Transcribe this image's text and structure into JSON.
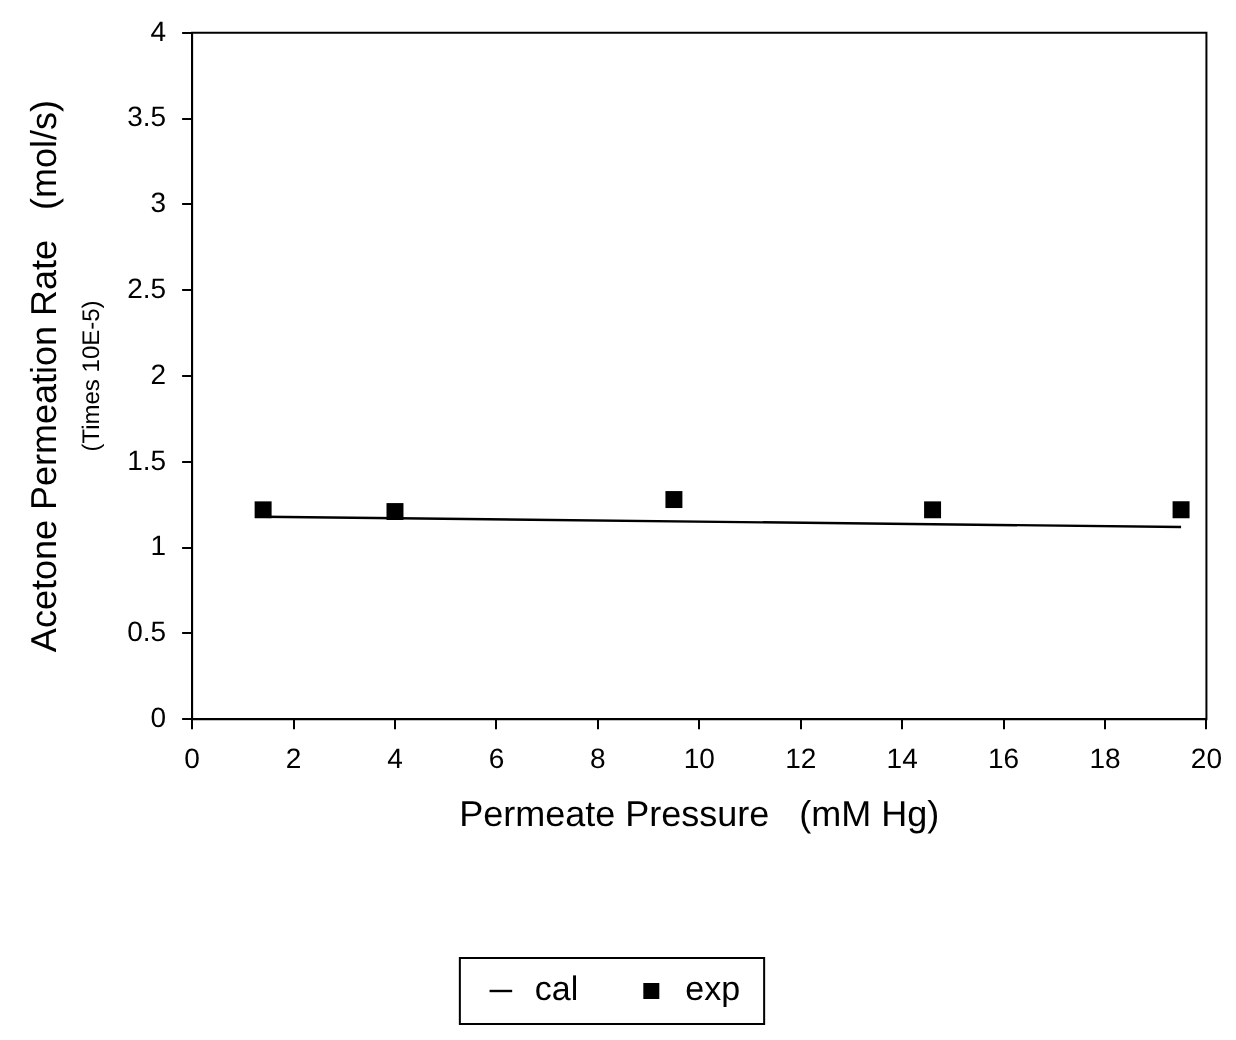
{
  "chart_data": {
    "type": "scatter",
    "xlabel": "Permeate Pressure   (mM Hg)",
    "ylabel": "Acetone Permeation Rate   (mol/s)",
    "annotations": [
      "(Times 10E-5)"
    ],
    "xlim": [
      0,
      20
    ],
    "xticks": [
      0,
      2,
      4,
      6,
      8,
      10,
      12,
      14,
      16,
      18,
      20
    ],
    "ylim": [
      0,
      4
    ],
    "yticks": [
      0,
      0.5,
      1,
      1.5,
      2,
      2.5,
      3,
      3.5,
      4
    ],
    "grid": false,
    "legend": "bottom",
    "series": [
      {
        "name": "cal",
        "type": "line",
        "color": "#000000",
        "marker": "none",
        "line_style": "solid",
        "x": [
          1.4,
          19.5
        ],
        "values": [
          1.18,
          1.12
        ]
      },
      {
        "name": "exp",
        "type": "scatter",
        "color": "#000000",
        "marker": "square",
        "x": [
          1.4,
          4.0,
          9.5,
          14.6,
          19.5
        ],
        "values": [
          1.22,
          1.21,
          1.28,
          1.22,
          1.22
        ]
      }
    ]
  }
}
